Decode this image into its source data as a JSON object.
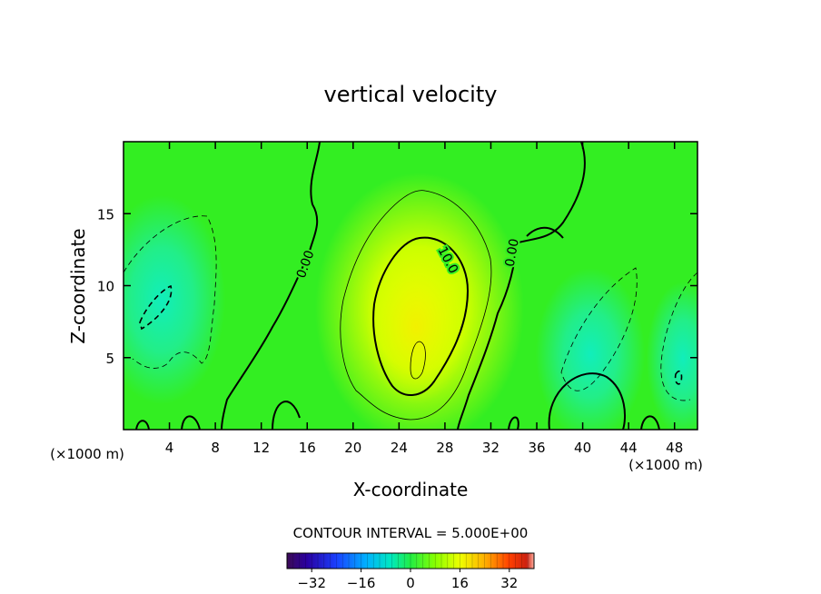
{
  "chart_data": {
    "type": "heatmap",
    "title": "vertical velocity",
    "xlabel": "X-coordinate",
    "ylabel": "Z-coordinate",
    "x_unit_left": "(×1000 m)",
    "x_unit_right": "(×1000 m)",
    "xlim": [
      0,
      50
    ],
    "ylim": [
      0,
      20
    ],
    "x_ticks": [
      4,
      8,
      12,
      16,
      20,
      24,
      28,
      32,
      36,
      40,
      44,
      48
    ],
    "y_ticks": [
      5,
      10,
      15
    ],
    "contour_interval_text": "CONTOUR INTERVAL = 5.000E+00",
    "contour_labels": [
      {
        "text": "0.00",
        "x": 15.8,
        "y": 11.5
      },
      {
        "text": "10.0",
        "x": 28.3,
        "y": 11.8
      },
      {
        "text": "0.00",
        "x": 33.8,
        "y": 12.3
      }
    ],
    "features": [
      {
        "kind": "updraft",
        "x": 26,
        "y": 8.5,
        "peak": 15
      },
      {
        "kind": "downdraft",
        "x": 3.5,
        "y": 9,
        "peak": -8
      },
      {
        "kind": "downdraft",
        "x": 42,
        "y": 4,
        "peak": -6
      },
      {
        "kind": "downdraft",
        "x": 48.5,
        "y": 3.5,
        "peak": -7
      }
    ],
    "colorbar": {
      "range": [
        -40,
        40
      ],
      "tick_labels": [
        "−32",
        "−16",
        "0",
        "16",
        "32"
      ],
      "tick_values": [
        -32,
        -16,
        0,
        16,
        32
      ]
    },
    "grid": false
  },
  "colors": {
    "field_base": "#33ee22",
    "positive": "#ddff00",
    "negative": "#00eeaa"
  }
}
